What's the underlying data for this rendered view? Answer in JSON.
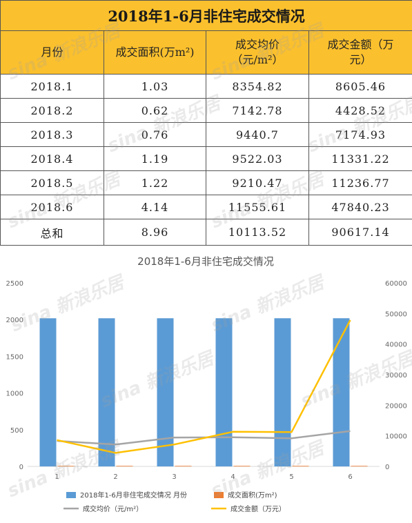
{
  "table": {
    "title": "2018年1-6月非住宅成交情况",
    "headers": [
      "月份",
      "成交面积(万m²)",
      "成交均价（元/m²）",
      "成交金额（万元）"
    ],
    "rows": [
      [
        "2018.1",
        "1.03",
        "8354.82",
        "8605.46"
      ],
      [
        "2018.2",
        "0.62",
        "7142.78",
        "4428.52"
      ],
      [
        "2018.3",
        "0.76",
        "9440.7",
        "7174.93"
      ],
      [
        "2018.4",
        "1.19",
        "9522.03",
        "11331.22"
      ],
      [
        "2018.5",
        "1.22",
        "9210.47",
        "11236.77"
      ],
      [
        "2018.6",
        "4.14",
        "11555.61",
        "47840.23"
      ],
      [
        "总和",
        "8.96",
        "10113.52",
        "90617.14"
      ]
    ]
  },
  "watermark": "sina 新浪乐居",
  "chart_data": {
    "type": "bar",
    "title": "2018年1-6月非住宅成交情况",
    "categories": [
      "1",
      "2",
      "3",
      "4",
      "5",
      "6"
    ],
    "y_left_ticks": [
      "0",
      "500",
      "1000",
      "1500",
      "2000",
      "2500"
    ],
    "y_right_ticks": [
      "0",
      "10000",
      "20000",
      "30000",
      "40000",
      "50000",
      "60000"
    ],
    "ylim_left": [
      0,
      2500
    ],
    "ylim_right": [
      0,
      60000
    ],
    "series": [
      {
        "name": "2018年1-6月非住宅成交情况 月份",
        "type": "bar",
        "axis": "left",
        "color": "#5b9bd5",
        "values": [
          2018.1,
          2018.2,
          2018.3,
          2018.4,
          2018.5,
          2018.6
        ]
      },
      {
        "name": "成交面积(万m²)",
        "type": "bar",
        "axis": "left",
        "color": "#ed7d31",
        "values": [
          1.03,
          0.62,
          0.76,
          1.19,
          1.22,
          4.14
        ]
      },
      {
        "name": "成交均价（元/m²）",
        "type": "line",
        "axis": "right",
        "color": "#a5a5a5",
        "values": [
          8354.82,
          7142.78,
          9440.7,
          9522.03,
          9210.47,
          11555.61
        ]
      },
      {
        "name": "成交金额（万元）",
        "type": "line",
        "axis": "right",
        "color": "#ffc000",
        "values": [
          8605.46,
          4428.52,
          7174.93,
          11331.22,
          11236.77,
          47840.23
        ]
      }
    ],
    "legend_position": "bottom",
    "grid": false
  }
}
